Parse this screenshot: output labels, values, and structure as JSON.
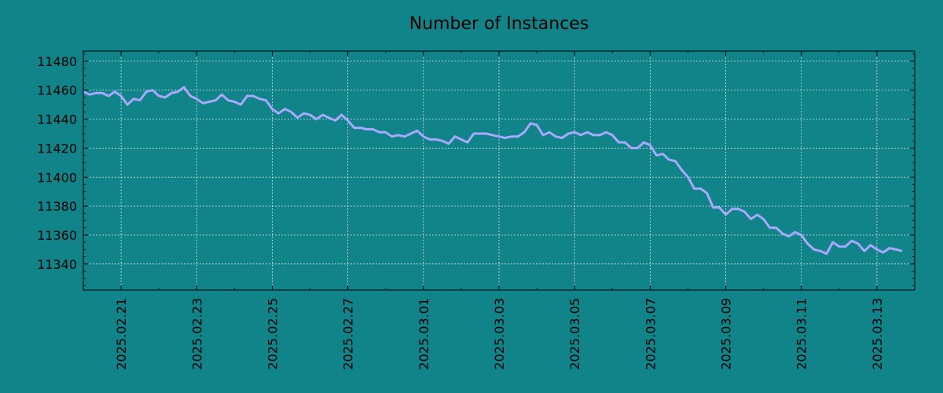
{
  "chart_data": {
    "type": "line",
    "title": "Number of Instances",
    "xlabel": "",
    "ylabel": "",
    "grid": true,
    "legend": "none",
    "ylim": [
      11322,
      11487
    ],
    "xlim": [
      "2025-02-20",
      "2025-03-14"
    ],
    "yticks": [
      11340,
      11360,
      11380,
      11400,
      11420,
      11440,
      11460,
      11480
    ],
    "xticks": [
      "2025.02.21",
      "2025.02.23",
      "2025.02.25",
      "2025.02.27",
      "2025.03.01",
      "2025.03.03",
      "2025.03.05",
      "2025.03.07",
      "2025.03.09",
      "2025.03.11",
      "2025.03.13"
    ],
    "series": [
      {
        "name": "",
        "color": "#a8a8ff",
        "points": [
          [
            "2025-02-20 00:00",
            11459
          ],
          [
            "2025-02-20 04:00",
            11457
          ],
          [
            "2025-02-20 08:00",
            11458
          ],
          [
            "2025-02-20 12:00",
            11458
          ],
          [
            "2025-02-20 16:00",
            11456
          ],
          [
            "2025-02-20 20:00",
            11459
          ],
          [
            "2025-02-21 00:00",
            11456
          ],
          [
            "2025-02-21 04:00",
            11450
          ],
          [
            "2025-02-21 08:00",
            11454
          ],
          [
            "2025-02-21 12:00",
            11453
          ],
          [
            "2025-02-21 16:00",
            11459
          ],
          [
            "2025-02-21 20:00",
            11460
          ],
          [
            "2025-02-22 00:00",
            11456
          ],
          [
            "2025-02-22 04:00",
            11455
          ],
          [
            "2025-02-22 08:00",
            11458
          ],
          [
            "2025-02-22 12:00",
            11459
          ],
          [
            "2025-02-22 16:00",
            11462
          ],
          [
            "2025-02-22 20:00",
            11456
          ],
          [
            "2025-02-23 00:00",
            11454
          ],
          [
            "2025-02-23 04:00",
            11451
          ],
          [
            "2025-02-23 08:00",
            11452
          ],
          [
            "2025-02-23 12:00",
            11453
          ],
          [
            "2025-02-23 16:00",
            11457
          ],
          [
            "2025-02-23 20:00",
            11453
          ],
          [
            "2025-02-24 00:00",
            11452
          ],
          [
            "2025-02-24 04:00",
            11450
          ],
          [
            "2025-02-24 08:00",
            11456
          ],
          [
            "2025-02-24 12:00",
            11456
          ],
          [
            "2025-02-24 16:00",
            11454
          ],
          [
            "2025-02-24 20:00",
            11453
          ],
          [
            "2025-02-25 00:00",
            11447
          ],
          [
            "2025-02-25 04:00",
            11444
          ],
          [
            "2025-02-25 08:00",
            11447
          ],
          [
            "2025-02-25 12:00",
            11445
          ],
          [
            "2025-02-25 16:00",
            11441
          ],
          [
            "2025-02-25 20:00",
            11444
          ],
          [
            "2025-02-26 00:00",
            11443
          ],
          [
            "2025-02-26 04:00",
            11440
          ],
          [
            "2025-02-26 08:00",
            11443
          ],
          [
            "2025-02-26 12:00",
            11441
          ],
          [
            "2025-02-26 16:00",
            11439
          ],
          [
            "2025-02-26 20:00",
            11443
          ],
          [
            "2025-02-27 00:00",
            11439
          ],
          [
            "2025-02-27 04:00",
            11434
          ],
          [
            "2025-02-27 08:00",
            11434
          ],
          [
            "2025-02-27 12:00",
            11433
          ],
          [
            "2025-02-27 16:00",
            11433
          ],
          [
            "2025-02-27 20:00",
            11431
          ],
          [
            "2025-02-28 00:00",
            11431
          ],
          [
            "2025-02-28 04:00",
            11428
          ],
          [
            "2025-02-28 08:00",
            11429
          ],
          [
            "2025-02-28 12:00",
            11428
          ],
          [
            "2025-02-28 16:00",
            11430
          ],
          [
            "2025-02-28 20:00",
            11432
          ],
          [
            "2025-03-01 00:00",
            11428
          ],
          [
            "2025-03-01 04:00",
            11426
          ],
          [
            "2025-03-01 08:00",
            11426
          ],
          [
            "2025-03-01 12:00",
            11425
          ],
          [
            "2025-03-01 16:00",
            11423
          ],
          [
            "2025-03-01 20:00",
            11428
          ],
          [
            "2025-03-02 00:00",
            11426
          ],
          [
            "2025-03-02 04:00",
            11424
          ],
          [
            "2025-03-02 08:00",
            11430
          ],
          [
            "2025-03-02 12:00",
            11430
          ],
          [
            "2025-03-02 16:00",
            11430
          ],
          [
            "2025-03-02 20:00",
            11429
          ],
          [
            "2025-03-03 00:00",
            11428
          ],
          [
            "2025-03-03 04:00",
            11427
          ],
          [
            "2025-03-03 08:00",
            11428
          ],
          [
            "2025-03-03 12:00",
            11428
          ],
          [
            "2025-03-03 16:00",
            11431
          ],
          [
            "2025-03-03 20:00",
            11437
          ],
          [
            "2025-03-04 00:00",
            11436
          ],
          [
            "2025-03-04 04:00",
            11429
          ],
          [
            "2025-03-04 08:00",
            11431
          ],
          [
            "2025-03-04 12:00",
            11428
          ],
          [
            "2025-03-04 16:00",
            11427
          ],
          [
            "2025-03-04 20:00",
            11430
          ],
          [
            "2025-03-05 00:00",
            11431
          ],
          [
            "2025-03-05 04:00",
            11429
          ],
          [
            "2025-03-05 08:00",
            11431
          ],
          [
            "2025-03-05 12:00",
            11429
          ],
          [
            "2025-03-05 16:00",
            11429
          ],
          [
            "2025-03-05 20:00",
            11431
          ],
          [
            "2025-03-06 00:00",
            11429
          ],
          [
            "2025-03-06 04:00",
            11424
          ],
          [
            "2025-03-06 08:00",
            11424
          ],
          [
            "2025-03-06 12:00",
            11420
          ],
          [
            "2025-03-06 16:00",
            11420
          ],
          [
            "2025-03-06 20:00",
            11424
          ],
          [
            "2025-03-07 00:00",
            11422
          ],
          [
            "2025-03-07 04:00",
            11415
          ],
          [
            "2025-03-07 08:00",
            11416
          ],
          [
            "2025-03-07 12:00",
            11412
          ],
          [
            "2025-03-07 16:00",
            11411
          ],
          [
            "2025-03-07 20:00",
            11405
          ],
          [
            "2025-03-08 00:00",
            11400
          ],
          [
            "2025-03-08 04:00",
            11392
          ],
          [
            "2025-03-08 08:00",
            11392
          ],
          [
            "2025-03-08 12:00",
            11389
          ],
          [
            "2025-03-08 16:00",
            11379
          ],
          [
            "2025-03-08 20:00",
            11379
          ],
          [
            "2025-03-09 00:00",
            11374
          ],
          [
            "2025-03-09 04:00",
            11378
          ],
          [
            "2025-03-09 08:00",
            11378
          ],
          [
            "2025-03-09 12:00",
            11376
          ],
          [
            "2025-03-09 16:00",
            11371
          ],
          [
            "2025-03-09 20:00",
            11374
          ],
          [
            "2025-03-10 00:00",
            11371
          ],
          [
            "2025-03-10 04:00",
            11365
          ],
          [
            "2025-03-10 08:00",
            11365
          ],
          [
            "2025-03-10 12:00",
            11361
          ],
          [
            "2025-03-10 16:00",
            11359
          ],
          [
            "2025-03-10 20:00",
            11362
          ],
          [
            "2025-03-11 00:00",
            11360
          ],
          [
            "2025-03-11 04:00",
            11354
          ],
          [
            "2025-03-11 08:00",
            11350
          ],
          [
            "2025-03-11 12:00",
            11349
          ],
          [
            "2025-03-11 16:00",
            11347
          ],
          [
            "2025-03-11 20:00",
            11355
          ],
          [
            "2025-03-12 00:00",
            11352
          ],
          [
            "2025-03-12 04:00",
            11352
          ],
          [
            "2025-03-12 08:00",
            11356
          ],
          [
            "2025-03-12 12:00",
            11354
          ],
          [
            "2025-03-12 16:00",
            11349
          ],
          [
            "2025-03-12 20:00",
            11353
          ],
          [
            "2025-03-13 00:00",
            11350
          ],
          [
            "2025-03-13 04:00",
            11348
          ],
          [
            "2025-03-13 08:00",
            11351
          ],
          [
            "2025-03-13 12:00",
            11350
          ],
          [
            "2025-03-13 16:00",
            11349
          ]
        ]
      }
    ]
  },
  "colors": {
    "background": "#108488",
    "line": "#a8a8ff",
    "grid": "#cfe3e3",
    "axis": "#000000"
  }
}
